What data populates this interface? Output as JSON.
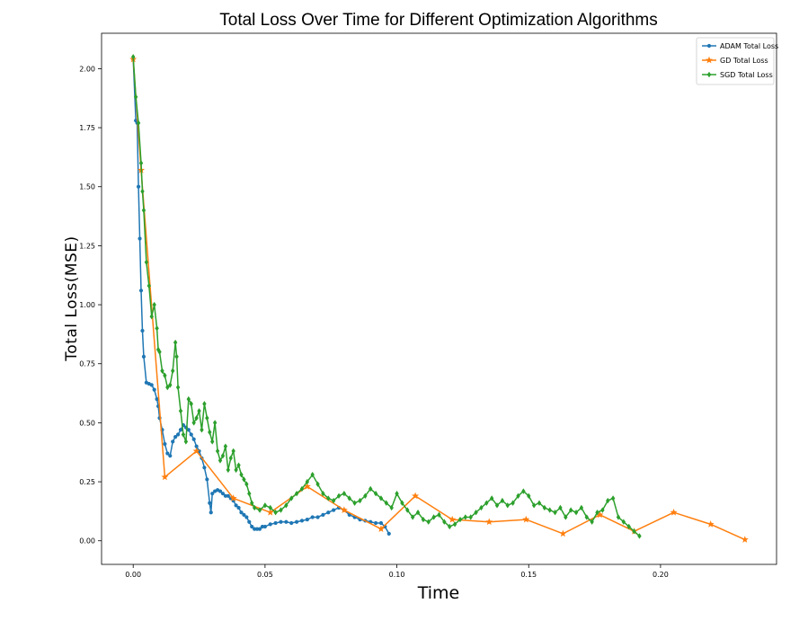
{
  "chart_data": {
    "type": "line",
    "title": "Total Loss Over Time for Different Optimization Algorithms",
    "xlabel": "Time",
    "ylabel": "Total Loss(MSE)",
    "xlim": [
      -0.012,
      0.244
    ],
    "ylim": [
      -0.1,
      2.15
    ],
    "x_ticks": [
      0.0,
      0.05,
      0.1,
      0.15,
      0.2
    ],
    "x_tick_labels": [
      "0.00",
      "0.05",
      "0.10",
      "0.15",
      "0.20"
    ],
    "y_ticks": [
      0.0,
      0.25,
      0.5,
      0.75,
      1.0,
      1.25,
      1.5,
      1.75,
      2.0
    ],
    "y_tick_labels": [
      "0.00",
      "0.25",
      "0.50",
      "0.75",
      "1.00",
      "1.25",
      "1.50",
      "1.75",
      "2.00"
    ],
    "grid": false,
    "legend_position": "top-right",
    "series": [
      {
        "name": "ADAM Total Loss",
        "color": "#1f77b4",
        "marker": "circle",
        "x": [
          0.0,
          0.001,
          0.0015,
          0.002,
          0.0025,
          0.003,
          0.0035,
          0.004,
          0.005,
          0.006,
          0.007,
          0.008,
          0.009,
          0.0095,
          0.01,
          0.011,
          0.012,
          0.013,
          0.014,
          0.015,
          0.016,
          0.017,
          0.018,
          0.019,
          0.02,
          0.021,
          0.022,
          0.023,
          0.024,
          0.025,
          0.026,
          0.027,
          0.028,
          0.029,
          0.0295,
          0.03,
          0.031,
          0.032,
          0.033,
          0.034,
          0.035,
          0.036,
          0.037,
          0.038,
          0.039,
          0.04,
          0.041,
          0.042,
          0.043,
          0.044,
          0.045,
          0.046,
          0.047,
          0.048,
          0.049,
          0.05,
          0.052,
          0.054,
          0.056,
          0.058,
          0.06,
          0.062,
          0.064,
          0.066,
          0.068,
          0.07,
          0.072,
          0.074,
          0.076,
          0.078,
          0.08,
          0.082,
          0.084,
          0.086,
          0.088,
          0.09,
          0.092,
          0.094,
          0.0955,
          0.097
        ],
        "y": [
          2.04,
          1.78,
          1.77,
          1.5,
          1.28,
          1.06,
          0.89,
          0.78,
          0.67,
          0.665,
          0.66,
          0.64,
          0.6,
          0.57,
          0.52,
          0.47,
          0.41,
          0.37,
          0.36,
          0.42,
          0.44,
          0.45,
          0.47,
          0.49,
          0.48,
          0.47,
          0.45,
          0.43,
          0.4,
          0.38,
          0.35,
          0.31,
          0.26,
          0.16,
          0.12,
          0.2,
          0.21,
          0.215,
          0.21,
          0.2,
          0.19,
          0.19,
          0.18,
          0.17,
          0.15,
          0.14,
          0.12,
          0.11,
          0.1,
          0.08,
          0.06,
          0.05,
          0.05,
          0.05,
          0.06,
          0.06,
          0.07,
          0.075,
          0.08,
          0.08,
          0.075,
          0.08,
          0.085,
          0.09,
          0.1,
          0.1,
          0.11,
          0.12,
          0.13,
          0.14,
          0.13,
          0.11,
          0.1,
          0.09,
          0.085,
          0.08,
          0.075,
          0.075,
          0.06,
          0.03
        ]
      },
      {
        "name": "GD Total Loss",
        "color": "#ff7f0e",
        "marker": "star",
        "x": [
          0.0,
          0.003,
          0.012,
          0.024,
          0.038,
          0.052,
          0.066,
          0.08,
          0.094,
          0.107,
          0.121,
          0.135,
          0.149,
          0.163,
          0.177,
          0.19,
          0.205,
          0.219,
          0.232
        ],
        "y": [
          2.04,
          1.57,
          0.27,
          0.38,
          0.18,
          0.12,
          0.23,
          0.13,
          0.05,
          0.19,
          0.09,
          0.08,
          0.09,
          0.03,
          0.11,
          0.04,
          0.12,
          0.07,
          0.005
        ]
      },
      {
        "name": "SGD Total Loss",
        "color": "#2ca02c",
        "marker": "diamond",
        "x": [
          0.0,
          0.001,
          0.002,
          0.003,
          0.0035,
          0.004,
          0.005,
          0.006,
          0.007,
          0.008,
          0.009,
          0.0095,
          0.01,
          0.011,
          0.012,
          0.013,
          0.014,
          0.015,
          0.016,
          0.0165,
          0.017,
          0.018,
          0.019,
          0.02,
          0.021,
          0.022,
          0.023,
          0.024,
          0.025,
          0.026,
          0.027,
          0.028,
          0.029,
          0.03,
          0.031,
          0.032,
          0.033,
          0.034,
          0.035,
          0.036,
          0.037,
          0.038,
          0.039,
          0.04,
          0.041,
          0.042,
          0.043,
          0.044,
          0.045,
          0.046,
          0.048,
          0.05,
          0.052,
          0.054,
          0.056,
          0.058,
          0.06,
          0.062,
          0.064,
          0.066,
          0.068,
          0.07,
          0.072,
          0.074,
          0.076,
          0.078,
          0.08,
          0.082,
          0.084,
          0.086,
          0.088,
          0.09,
          0.092,
          0.094,
          0.096,
          0.098,
          0.1,
          0.102,
          0.104,
          0.106,
          0.108,
          0.11,
          0.112,
          0.114,
          0.116,
          0.118,
          0.12,
          0.122,
          0.124,
          0.126,
          0.128,
          0.13,
          0.132,
          0.134,
          0.136,
          0.138,
          0.14,
          0.142,
          0.144,
          0.146,
          0.148,
          0.15,
          0.152,
          0.154,
          0.156,
          0.158,
          0.16,
          0.162,
          0.164,
          0.166,
          0.168,
          0.17,
          0.172,
          0.174,
          0.176,
          0.178,
          0.18,
          0.182,
          0.184,
          0.186,
          0.188,
          0.19,
          0.192
        ],
        "y": [
          2.05,
          1.88,
          1.77,
          1.6,
          1.48,
          1.4,
          1.18,
          1.08,
          0.95,
          1.0,
          0.9,
          0.81,
          0.8,
          0.72,
          0.7,
          0.65,
          0.66,
          0.72,
          0.84,
          0.78,
          0.65,
          0.55,
          0.45,
          0.42,
          0.6,
          0.58,
          0.5,
          0.52,
          0.55,
          0.47,
          0.58,
          0.52,
          0.46,
          0.42,
          0.5,
          0.38,
          0.34,
          0.36,
          0.4,
          0.3,
          0.35,
          0.38,
          0.3,
          0.32,
          0.28,
          0.26,
          0.24,
          0.2,
          0.16,
          0.14,
          0.13,
          0.15,
          0.14,
          0.12,
          0.13,
          0.15,
          0.18,
          0.2,
          0.22,
          0.25,
          0.28,
          0.24,
          0.2,
          0.18,
          0.17,
          0.19,
          0.2,
          0.18,
          0.16,
          0.17,
          0.19,
          0.22,
          0.2,
          0.18,
          0.16,
          0.14,
          0.2,
          0.16,
          0.13,
          0.1,
          0.12,
          0.09,
          0.08,
          0.1,
          0.11,
          0.08,
          0.06,
          0.07,
          0.09,
          0.1,
          0.1,
          0.12,
          0.14,
          0.16,
          0.18,
          0.15,
          0.17,
          0.15,
          0.16,
          0.19,
          0.21,
          0.19,
          0.15,
          0.16,
          0.14,
          0.13,
          0.12,
          0.14,
          0.1,
          0.13,
          0.12,
          0.14,
          0.1,
          0.08,
          0.12,
          0.13,
          0.17,
          0.18,
          0.1,
          0.08,
          0.06,
          0.04,
          0.02
        ]
      }
    ]
  }
}
